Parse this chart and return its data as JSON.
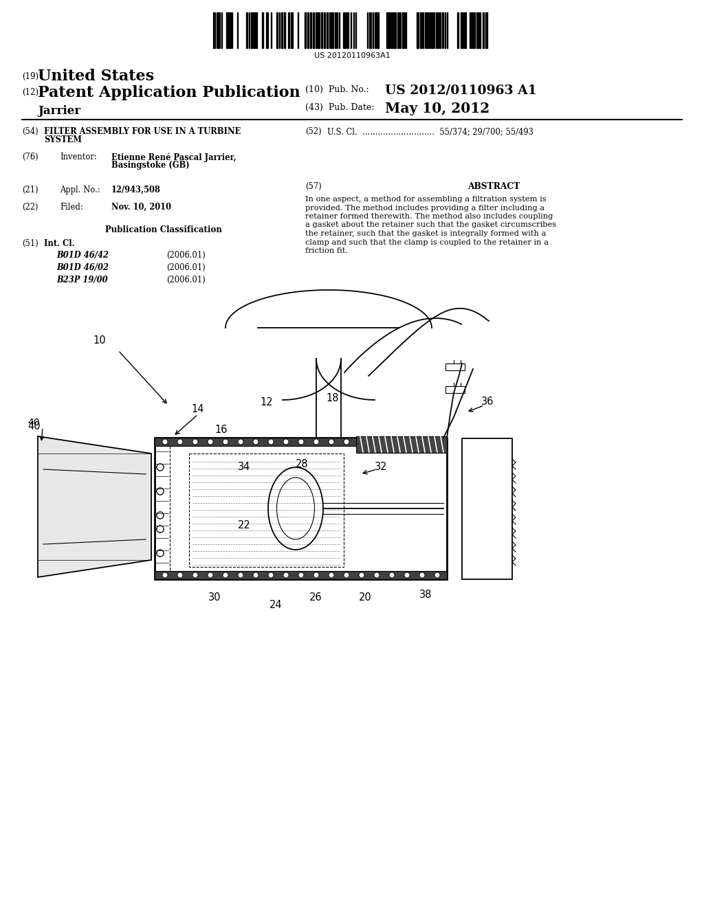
{
  "bg_color": "#ffffff",
  "barcode_text": "US 20120110963A1",
  "title_19": "(19)",
  "title_19_text": "United States",
  "title_12": "(12)",
  "title_12_text": "Patent Application Publication",
  "pub_no_label": "(10)  Pub. No.:",
  "pub_no_value": "US 2012/0110963 A1",
  "inventor_name": "Jarrier",
  "pub_date_label": "(43)  Pub. Date:",
  "pub_date_value": "May 10, 2012",
  "field54_label": "(54)",
  "field54_text_line1": "FILTER ASSEMBLY FOR USE IN A TURBINE",
  "field54_text_line2": "SYSTEM",
  "field52_label": "(52)",
  "field52_text": "U.S. Cl.  ............................  55/374; 29/700; 55/493",
  "field76_label": "(76)",
  "field76_key": "Inventor:",
  "field76_value_line1": "Etienne René Pascal Jarrier,",
  "field76_value_line2": "Basingstoke (GB)",
  "field57_label": "(57)",
  "field57_title": "ABSTRACT",
  "field57_lines": [
    "In one aspect, a method for assembling a filtration system is",
    "provided. The method includes providing a filter including a",
    "retainer formed therewith. The method also includes coupling",
    "a gasket about the retainer such that the gasket circumscribes",
    "the retainer, such that the gasket is integrally formed with a",
    "clamp and such that the clamp is coupled to the retainer in a",
    "friction fit."
  ],
  "field21_label": "(21)",
  "field21_key": "Appl. No.:",
  "field21_value": "12/943,508",
  "field22_label": "(22)",
  "field22_key": "Filed:",
  "field22_value": "Nov. 10, 2010",
  "pub_class_title": "Publication Classification",
  "field51_label": "(51)",
  "field51_key": "Int. Cl.",
  "field51_classes": [
    [
      "B01D 46/42",
      "(2006.01)"
    ],
    [
      "B01D 46/02",
      "(2006.01)"
    ],
    [
      "B23P 19/00",
      "(2006.01)"
    ]
  ],
  "diagram_label_10": "10",
  "diagram_label_40": "40",
  "diagram_label_14": "14",
  "diagram_label_12": "12",
  "diagram_label_16": "16",
  "diagram_label_18": "18",
  "diagram_label_36": "36",
  "diagram_label_34": "34",
  "diagram_label_28": "28",
  "diagram_label_32": "32",
  "diagram_label_22": "22",
  "diagram_label_30": "30",
  "diagram_label_24": "24",
  "diagram_label_26": "26",
  "diagram_label_20": "20",
  "diagram_label_38": "38"
}
